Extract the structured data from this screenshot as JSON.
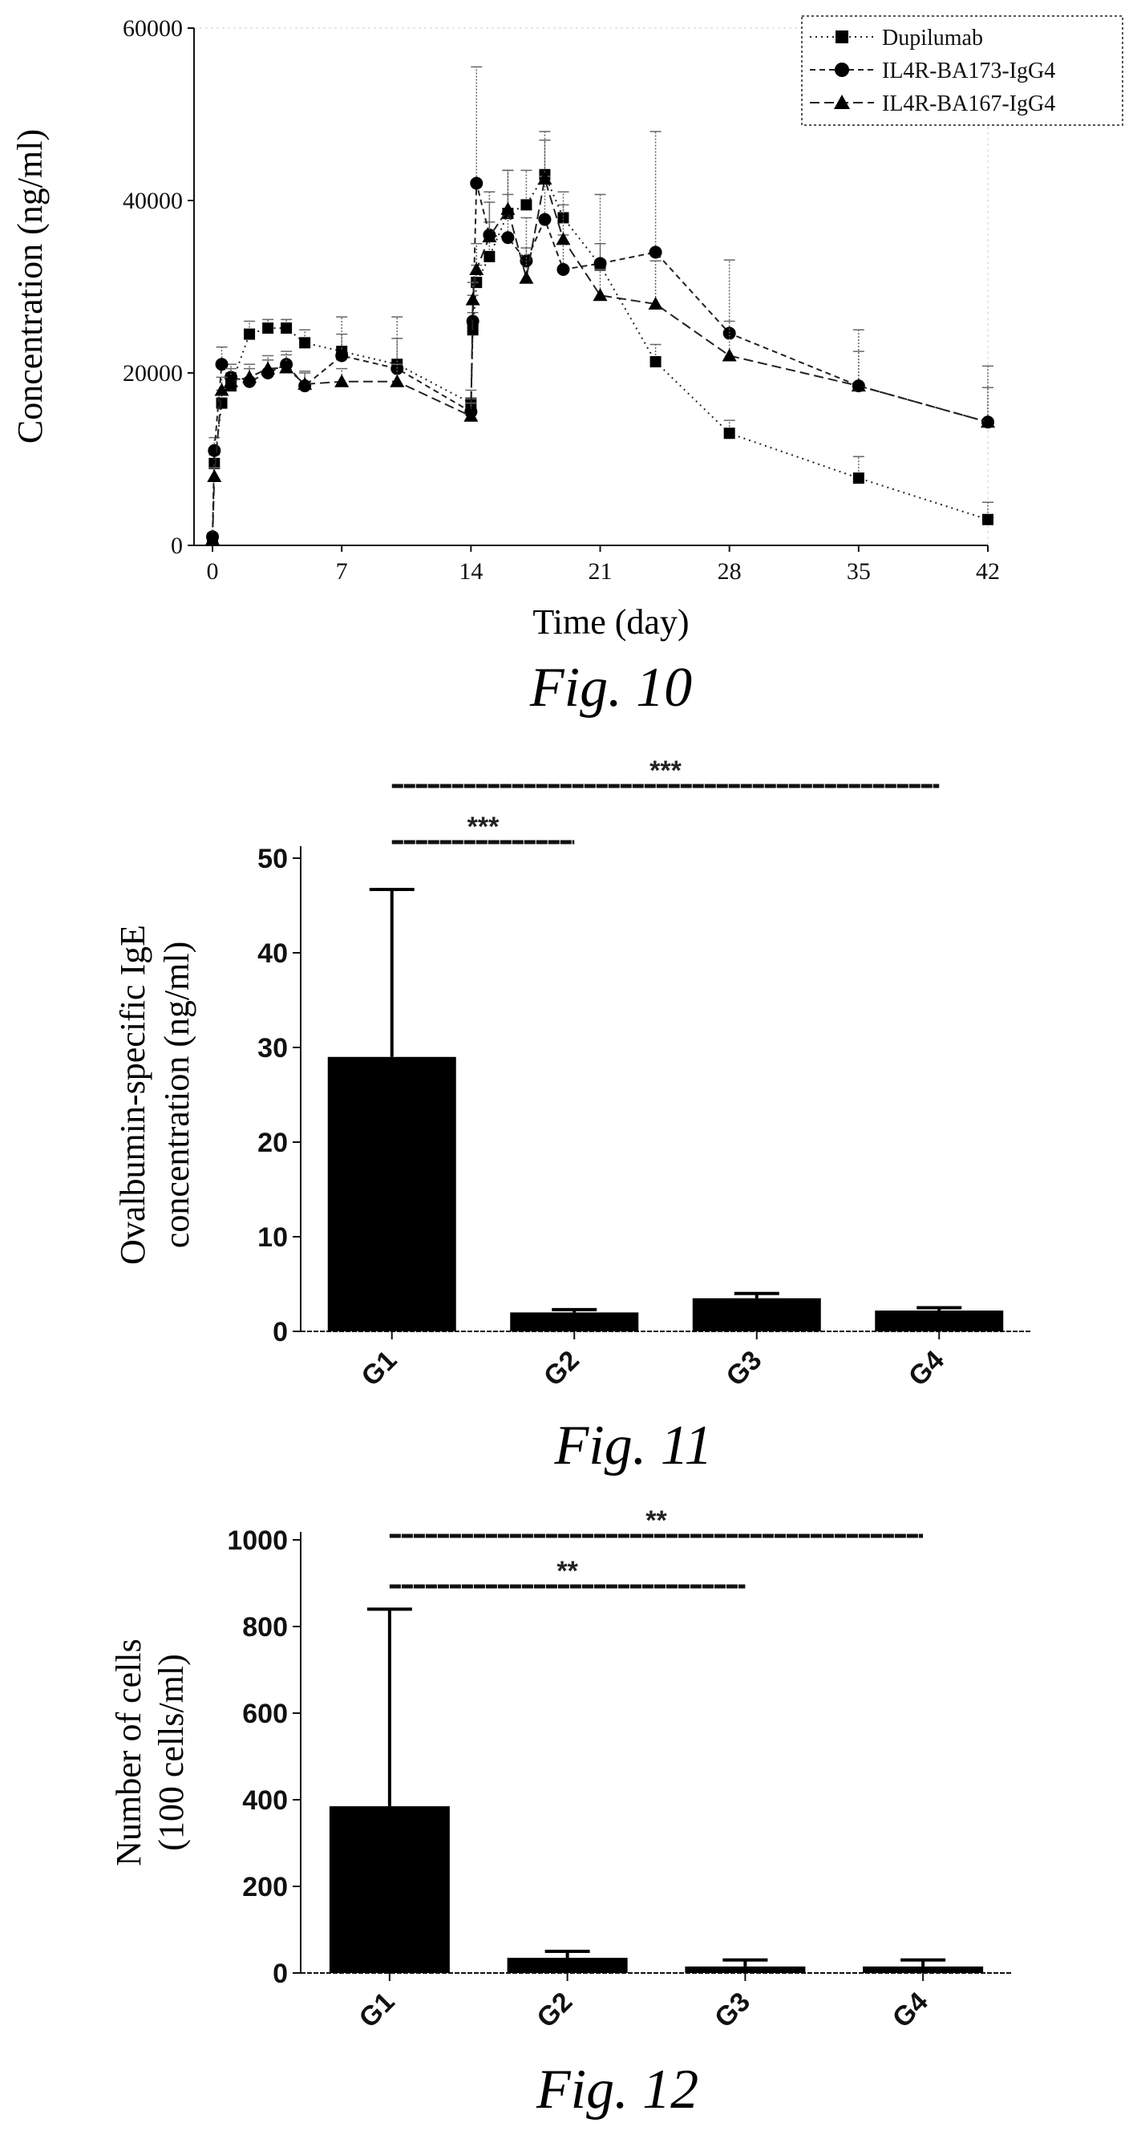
{
  "chart_data": [
    {
      "type": "line",
      "caption": "Fig. 10",
      "xlabel": "Time (day)",
      "ylabel": "Concentration (ng/ml)",
      "xlim": [
        -1,
        42
      ],
      "ylim": [
        0,
        60000
      ],
      "xticks": [
        0,
        7,
        14,
        21,
        28,
        35,
        42
      ],
      "yticks": [
        0,
        20000,
        40000,
        60000
      ],
      "legend_position": "top-right",
      "series": [
        {
          "name": "Dupilumab",
          "marker": "square",
          "dash": "2,5",
          "points": [
            [
              0,
              800
            ],
            [
              0.1,
              9500
            ],
            [
              0.5,
              16500
            ],
            [
              1,
              18500
            ],
            [
              2,
              24500
            ],
            [
              3,
              25200
            ],
            [
              4,
              25200
            ],
            [
              5,
              23500
            ],
            [
              7,
              22500
            ],
            [
              10,
              21000
            ],
            [
              14,
              16500
            ],
            [
              14.1,
              25000
            ],
            [
              14.3,
              30500
            ],
            [
              15,
              33500
            ],
            [
              16,
              38500
            ],
            [
              17,
              39500
            ],
            [
              18,
              43000
            ],
            [
              19,
              38000
            ],
            [
              21,
              32500
            ],
            [
              24,
              21300
            ],
            [
              28,
              13000
            ],
            [
              35,
              7800
            ],
            [
              42,
              3000
            ]
          ],
          "err": [
            0,
            1000,
            1500,
            1500,
            1500,
            1000,
            1000,
            1500,
            4000,
            5500,
            1500,
            2000,
            2000,
            4000,
            5000,
            4000,
            5000,
            3000,
            2500,
            2000,
            1500,
            2500,
            2000
          ]
        },
        {
          "name": "IL4R-BA173-IgG4",
          "marker": "circle",
          "dash": "7,5",
          "points": [
            [
              0,
              1000
            ],
            [
              0.1,
              11000
            ],
            [
              0.5,
              21000
            ],
            [
              1,
              19500
            ],
            [
              2,
              19000
            ],
            [
              3,
              20000
            ],
            [
              4,
              21000
            ],
            [
              5,
              18500
            ],
            [
              7,
              22000
            ],
            [
              10,
              20500
            ],
            [
              14,
              15500
            ],
            [
              14.1,
              26000
            ],
            [
              14.3,
              42000
            ],
            [
              15,
              36000
            ],
            [
              16,
              35700
            ],
            [
              17,
              33000
            ],
            [
              18,
              37800
            ],
            [
              19,
              32000
            ],
            [
              21,
              32700
            ],
            [
              24,
              34000
            ],
            [
              28,
              24600
            ],
            [
              35,
              18500
            ],
            [
              42,
              14300
            ]
          ],
          "err": [
            0,
            1500,
            2000,
            1500,
            1500,
            1500,
            1500,
            1500,
            2500,
            3500,
            1500,
            3000,
            13500,
            5000,
            5000,
            5000,
            5000,
            4000,
            8000,
            14000,
            8500,
            6500,
            6500
          ]
        },
        {
          "name": "IL4R-BA167-IgG4",
          "marker": "triangle",
          "dash": "12,6",
          "points": [
            [
              0,
              700
            ],
            [
              0.1,
              8000
            ],
            [
              0.5,
              18000
            ],
            [
              1,
              19000
            ],
            [
              2,
              19500
            ],
            [
              3,
              20500
            ],
            [
              4,
              20600
            ],
            [
              5,
              18700
            ],
            [
              7,
              19000
            ],
            [
              10,
              19000
            ],
            [
              14,
              15000
            ],
            [
              14.1,
              28500
            ],
            [
              14.3,
              32000
            ],
            [
              15,
              35800
            ],
            [
              16,
              39000
            ],
            [
              17,
              31000
            ],
            [
              18,
              42500
            ],
            [
              19,
              35500
            ],
            [
              21,
              29000
            ],
            [
              24,
              28000
            ],
            [
              28,
              22000
            ],
            [
              35,
              18500
            ],
            [
              42,
              14300
            ]
          ],
          "err": [
            0,
            1000,
            1500,
            1500,
            1500,
            1500,
            1500,
            1500,
            1500,
            2000,
            1500,
            2000,
            3000,
            4000,
            4500,
            3500,
            4500,
            4000,
            3000,
            5000,
            4000,
            4000,
            4000
          ]
        }
      ]
    },
    {
      "type": "bar",
      "caption": "Fig. 11",
      "ylabel": [
        "Ovalbumin-specific IgE",
        "concentration (ng/ml)"
      ],
      "categories": [
        "G1",
        "G2",
        "G3",
        "G4"
      ],
      "values": [
        29,
        2,
        3.5,
        2.2
      ],
      "errors": [
        17.7,
        0.3,
        0.5,
        0.3
      ],
      "ylim": [
        0,
        50
      ],
      "yticks": [
        0,
        10,
        20,
        30,
        40,
        50
      ],
      "significance": [
        {
          "from": "G1",
          "to": "G2",
          "label": "***"
        },
        {
          "from": "G1",
          "to": "G4",
          "label": "***"
        }
      ]
    },
    {
      "type": "bar",
      "caption": "Fig. 12",
      "ylabel": [
        "Number of cells",
        "(100 cells/ml)"
      ],
      "categories": [
        "G1",
        "G2",
        "G3",
        "G4"
      ],
      "values": [
        385,
        35,
        15,
        15
      ],
      "errors": [
        455,
        15,
        15,
        15
      ],
      "ylim": [
        0,
        1000
      ],
      "yticks": [
        0,
        200,
        400,
        600,
        800,
        1000
      ],
      "significance": [
        {
          "from": "G1",
          "to": "G3",
          "label": "**"
        },
        {
          "from": "G1",
          "to": "G4",
          "label": "**"
        }
      ]
    }
  ]
}
